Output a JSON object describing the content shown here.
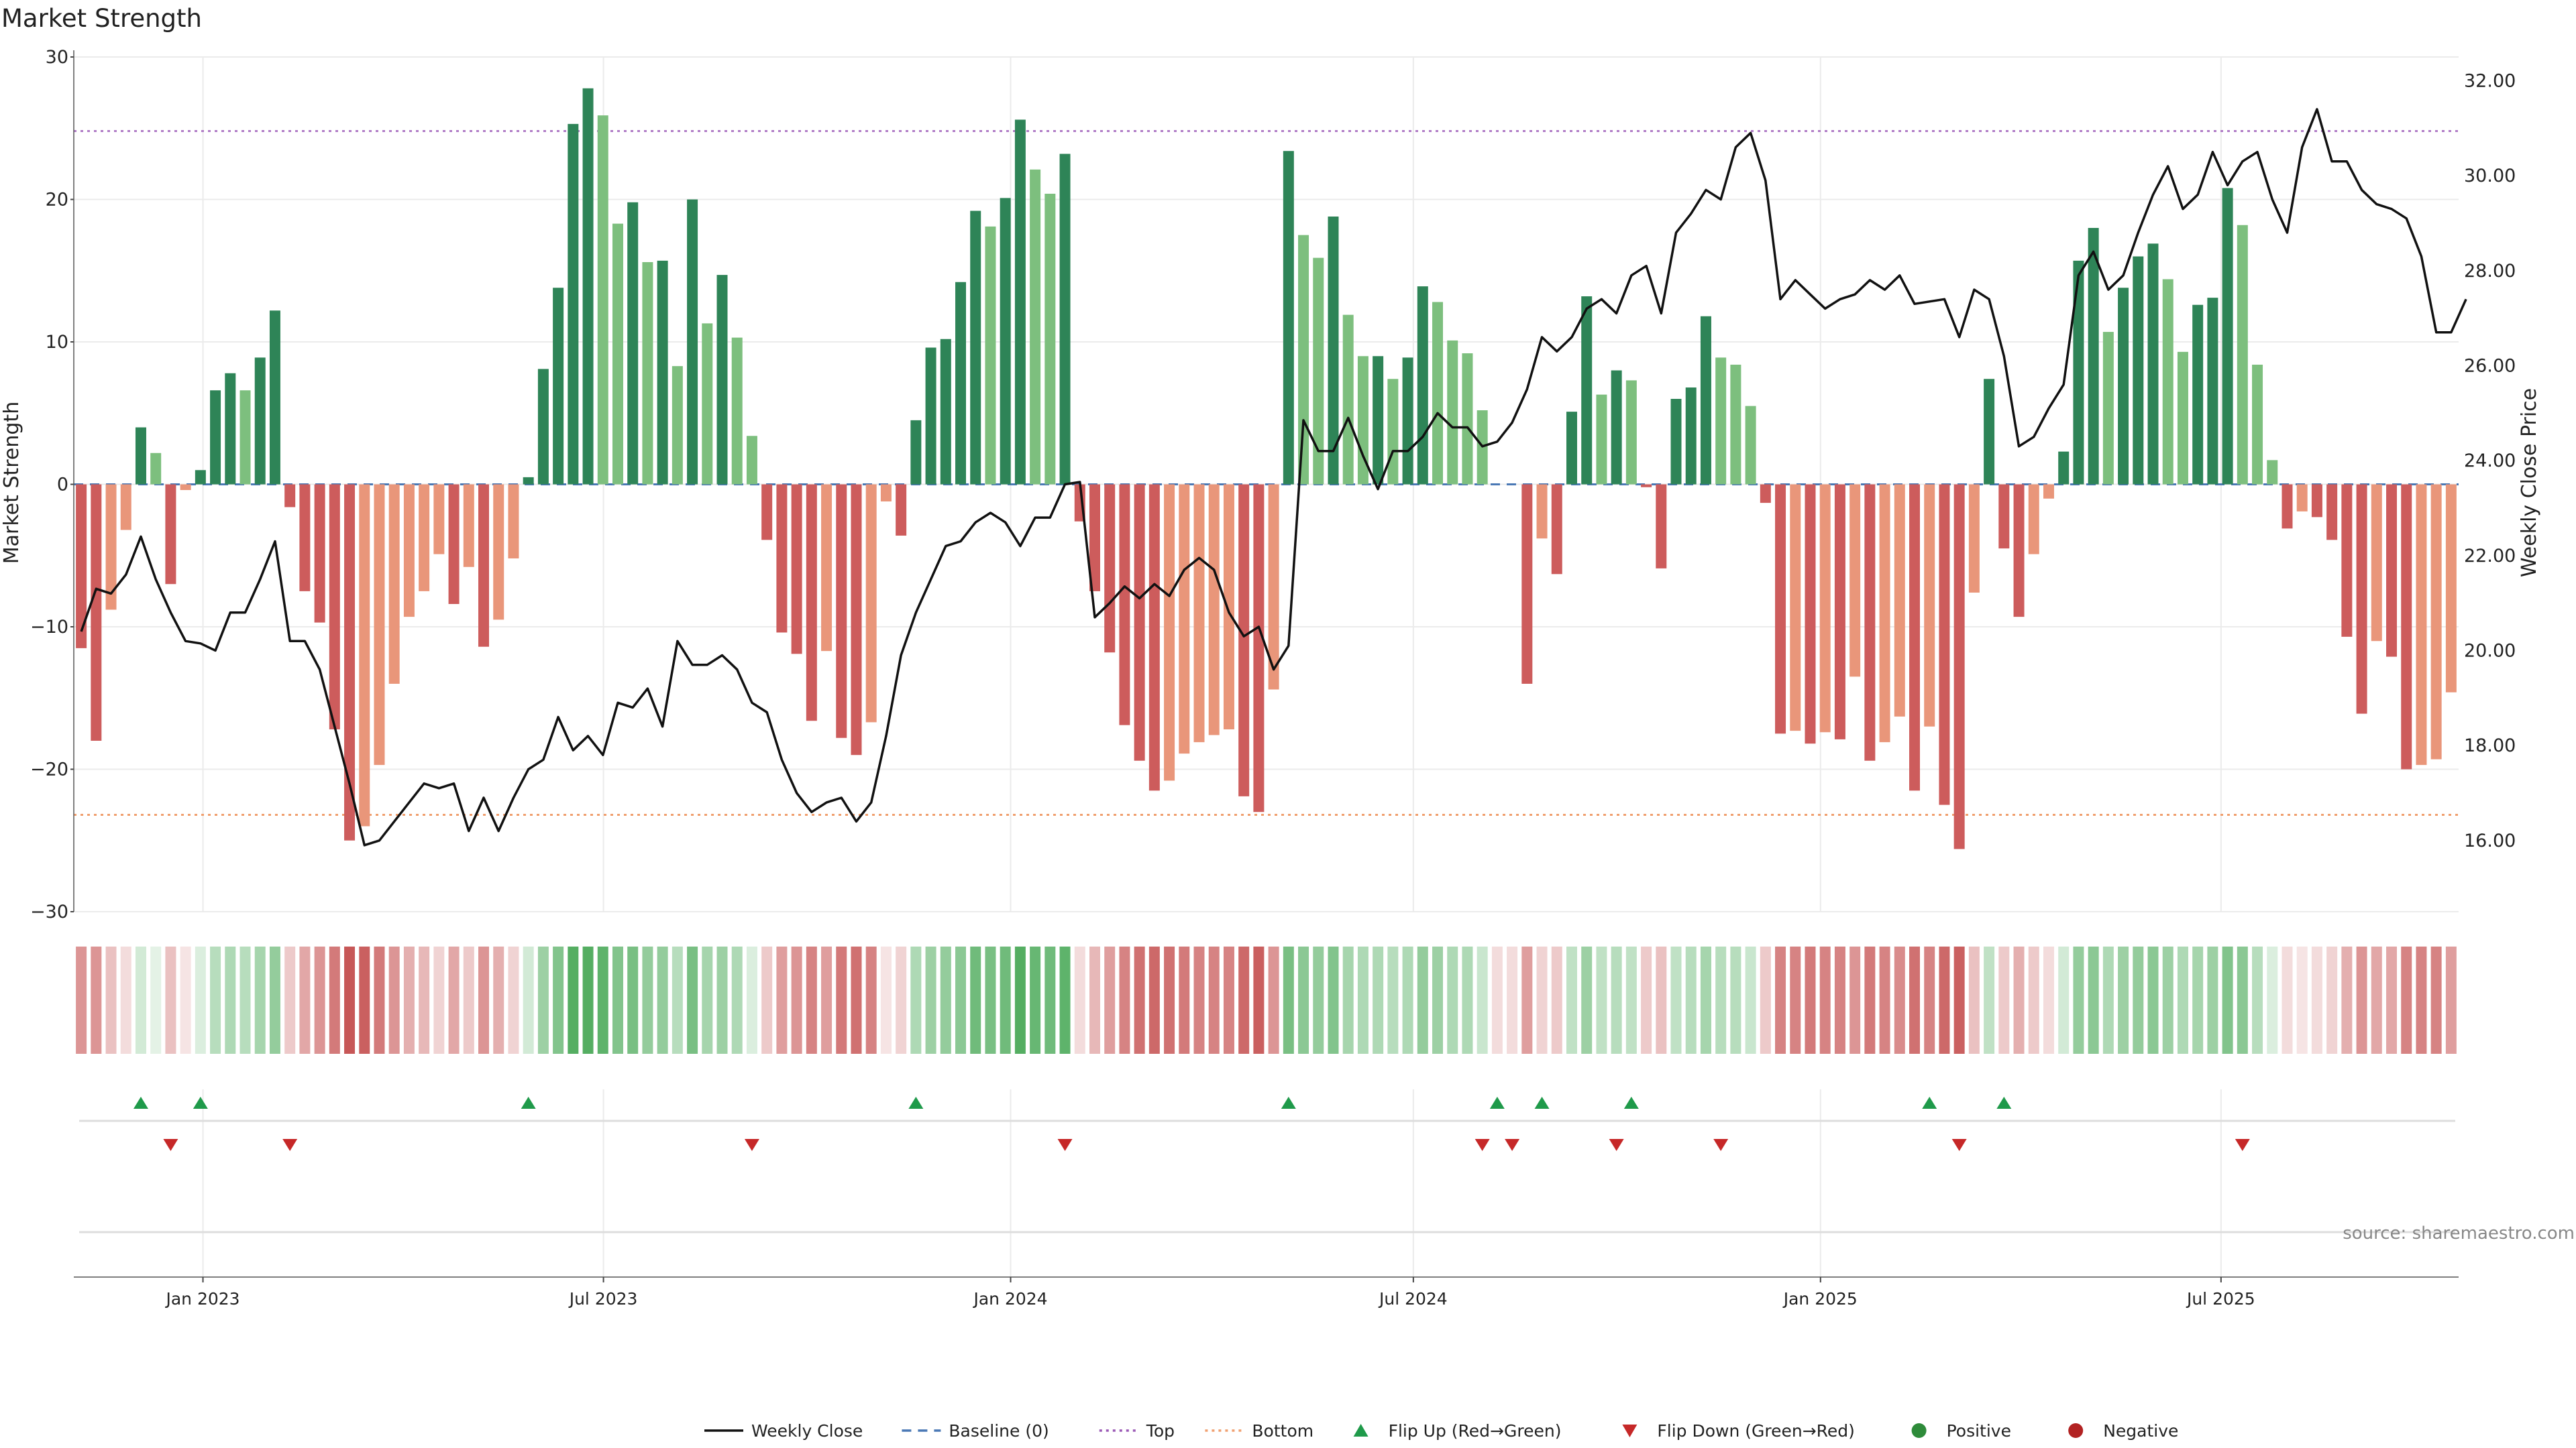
{
  "chart_data": {
    "type": "bar",
    "title": "Market Strength",
    "ylabel": "Market Strength",
    "y2label": "Weekly Close Price",
    "source": "source: sharemaestro.com",
    "ylim": [
      -30,
      30
    ],
    "y2lim": [
      14.5,
      32.5
    ],
    "yticks": [
      -30,
      -20,
      -10,
      0,
      10,
      20,
      30
    ],
    "y2ticks": [
      "16.00",
      "18.00",
      "20.00",
      "22.00",
      "24.00",
      "26.00",
      "28.00",
      "30.00",
      "32.00"
    ],
    "x_start": "2022-11-07",
    "x_end": "2025-10-13",
    "xticks": [
      {
        "date": "2023-01-01",
        "label": "Jan 2023"
      },
      {
        "date": "2023-07-01",
        "label": "Jul 2023"
      },
      {
        "date": "2024-01-01",
        "label": "Jan 2024"
      },
      {
        "date": "2024-07-01",
        "label": "Jul 2024"
      },
      {
        "date": "2025-01-01",
        "label": "Jan 2025"
      },
      {
        "date": "2025-07-01",
        "label": "Jul 2025"
      }
    ],
    "top_level": 24.8,
    "bottom_level": -23.2,
    "baseline": 0,
    "strength": [
      -11.5,
      -18,
      -8.8,
      -3.2,
      4,
      2.2,
      -7,
      -0.4,
      1,
      6.6,
      7.8,
      6.6,
      8.9,
      12.2,
      -1.6,
      -7.5,
      -9.7,
      -17.2,
      -25,
      -24,
      -19.7,
      -14,
      -9.3,
      -7.5,
      -4.9,
      -8.4,
      -5.8,
      -11.4,
      -9.5,
      -5.2,
      0.5,
      8.1,
      13.8,
      25.3,
      27.8,
      25.9,
      18.3,
      19.8,
      15.6,
      15.7,
      8.3,
      20,
      11.3,
      14.7,
      10.3,
      3.4,
      -3.9,
      -10.4,
      -11.9,
      -16.6,
      -11.7,
      -17.8,
      -19,
      -16.7,
      -1.2,
      -3.6,
      4.5,
      9.6,
      10.2,
      14.2,
      19.2,
      18.1,
      20.1,
      25.6,
      22.1,
      20.4,
      23.2,
      -2.6,
      -7.5,
      -11.8,
      -16.9,
      -19.4,
      -21.5,
      -20.8,
      -18.9,
      -18.1,
      -17.6,
      -17.2,
      -21.9,
      -23,
      -14.4,
      23.4,
      17.5,
      15.9,
      18.8,
      11.9,
      9,
      9,
      7.4,
      8.9,
      13.9,
      12.8,
      10.1,
      9.2,
      5.2,
      0,
      0,
      -14,
      -3.8,
      -6.3,
      5.1,
      13.2,
      6.3,
      8,
      7.3,
      -0.2,
      -5.9,
      6,
      6.8,
      11.8,
      8.9,
      8.4,
      5.5,
      -1.3,
      -17.5,
      -17.3,
      -18.2,
      -17.4,
      -17.9,
      -13.5,
      -19.4,
      -18.1,
      -16.3,
      -21.5,
      -17,
      -22.5,
      -25.6,
      -7.6,
      7.4,
      -4.5,
      -9.3,
      -4.9,
      -1,
      2.3,
      15.7,
      18,
      10.7,
      13.8,
      16,
      16.9,
      14.4,
      9.3,
      12.6,
      13.1,
      20.8,
      18.2,
      8.4,
      1.7,
      -3.1,
      -1.9,
      -2.3,
      -3.9,
      -10.7,
      -16.1,
      -11,
      -12.1,
      -20,
      -19.7,
      -19.3,
      -14.6
    ],
    "band_intensity": [
      0.6,
      0.6,
      0.35,
      0.2,
      0.25,
      0.15,
      0.35,
      0.15,
      0.2,
      0.4,
      0.45,
      0.4,
      0.5,
      0.6,
      0.3,
      0.5,
      0.6,
      0.75,
      0.95,
      0.9,
      0.75,
      0.6,
      0.45,
      0.4,
      0.25,
      0.5,
      0.3,
      0.6,
      0.45,
      0.25,
      0.25,
      0.55,
      0.7,
      0.95,
      0.95,
      0.9,
      0.7,
      0.75,
      0.6,
      0.6,
      0.4,
      0.75,
      0.5,
      0.55,
      0.45,
      0.2,
      0.3,
      0.55,
      0.6,
      0.7,
      0.55,
      0.75,
      0.8,
      0.7,
      0.15,
      0.25,
      0.45,
      0.55,
      0.6,
      0.65,
      0.8,
      0.75,
      0.8,
      0.95,
      0.85,
      0.8,
      0.9,
      0.2,
      0.4,
      0.55,
      0.7,
      0.8,
      0.85,
      0.8,
      0.75,
      0.7,
      0.7,
      0.7,
      0.85,
      0.9,
      0.6,
      0.75,
      0.65,
      0.6,
      0.7,
      0.5,
      0.45,
      0.45,
      0.4,
      0.45,
      0.6,
      0.55,
      0.45,
      0.45,
      0.3,
      0.2,
      0.2,
      0.55,
      0.25,
      0.3,
      0.35,
      0.55,
      0.35,
      0.4,
      0.35,
      0.3,
      0.35,
      0.35,
      0.4,
      0.5,
      0.4,
      0.4,
      0.3,
      0.3,
      0.7,
      0.7,
      0.75,
      0.7,
      0.7,
      0.6,
      0.75,
      0.7,
      0.65,
      0.8,
      0.7,
      0.85,
      0.9,
      0.35,
      0.35,
      0.3,
      0.45,
      0.3,
      0.2,
      0.25,
      0.6,
      0.65,
      0.45,
      0.55,
      0.6,
      0.65,
      0.55,
      0.45,
      0.5,
      0.55,
      0.7,
      0.65,
      0.4,
      0.2,
      0.2,
      0.15,
      0.2,
      0.25,
      0.45,
      0.6,
      0.5,
      0.5,
      0.7,
      0.7,
      0.7,
      0.55
    ],
    "weekly_close": [
      20.4,
      21.3,
      21.2,
      21.6,
      22.4,
      21.5,
      20.8,
      20.2,
      20.15,
      20.0,
      20.8,
      20.8,
      21.5,
      22.3,
      20.2,
      20.2,
      19.6,
      18.4,
      17.2,
      15.9,
      16.0,
      16.4,
      16.8,
      17.2,
      17.1,
      17.2,
      16.2,
      16.9,
      16.2,
      16.9,
      17.5,
      17.7,
      18.6,
      17.9,
      18.2,
      17.8,
      18.9,
      18.8,
      19.2,
      18.4,
      20.2,
      19.7,
      19.7,
      19.9,
      19.6,
      18.9,
      18.7,
      17.7,
      17.0,
      16.6,
      16.8,
      16.9,
      16.4,
      16.8,
      18.2,
      19.9,
      20.8,
      21.5,
      22.2,
      22.3,
      22.7,
      22.9,
      22.7,
      22.2,
      22.8,
      22.8,
      23.5,
      23.55,
      20.7,
      21.0,
      21.35,
      21.1,
      21.4,
      21.15,
      21.7,
      21.95,
      21.7,
      20.8,
      20.3,
      20.5,
      19.6,
      20.1,
      24.85,
      24.2,
      24.2,
      24.9,
      24.1,
      23.4,
      24.2,
      24.2,
      24.5,
      25.0,
      24.7,
      24.7,
      24.3,
      24.4,
      24.8,
      25.5,
      26.6,
      26.3,
      26.6,
      27.2,
      27.4,
      27.1,
      27.9,
      28.1,
      27.1,
      28.8,
      29.2,
      29.7,
      29.5,
      30.6,
      30.9,
      29.9,
      27.4,
      27.8,
      27.5,
      27.2,
      27.4,
      27.5,
      27.8,
      27.6,
      27.9,
      27.3,
      27.35,
      27.4,
      26.6,
      27.6,
      27.4,
      26.2,
      24.3,
      24.5,
      25.1,
      25.6,
      27.9,
      28.4,
      27.6,
      27.9,
      28.8,
      29.6,
      30.2,
      29.3,
      29.6,
      30.5,
      29.8,
      30.3,
      30.5,
      29.5,
      28.8,
      30.6,
      31.4,
      30.3,
      30.3,
      29.7,
      29.4,
      29.3,
      29.1,
      28.3,
      26.7,
      26.7,
      27.4
    ],
    "flip_up_weeks": [
      4,
      8,
      30,
      56,
      81,
      95,
      98,
      104,
      124,
      129
    ],
    "flip_down_weeks": [
      6,
      14,
      45,
      66,
      94,
      96,
      103,
      110,
      126,
      145
    ],
    "legend": [
      {
        "label": "Weekly Close",
        "kind": "line",
        "color": "#111111"
      },
      {
        "label": "Baseline (0)",
        "kind": "dash",
        "color": "#4a78b5"
      },
      {
        "label": "Top",
        "kind": "dot",
        "color": "#9b59b6"
      },
      {
        "label": "Bottom",
        "kind": "dot",
        "color": "#f0a070"
      },
      {
        "label": "Flip Up (Red→Green)",
        "kind": "tri-up",
        "color": "#1f9a4a"
      },
      {
        "label": "Flip Down (Green→Red)",
        "kind": "tri-down",
        "color": "#c62828"
      },
      {
        "label": "Positive",
        "kind": "circle",
        "color": "#2e8b3a"
      },
      {
        "label": "Negative",
        "kind": "circle",
        "color": "#b22222"
      }
    ],
    "grid": true,
    "legend_position": "bottom-center"
  },
  "colors": {
    "pos_dark": "#2e8457",
    "pos_light": "#7dbf7e",
    "neg_dark": "#cd5c5c",
    "neg_light": "#e9967a",
    "top_line": "#b07cc6",
    "bottom_line": "#f0a070",
    "baseline": "#4a78b5",
    "grid": "#ebebeb",
    "flip_up": "#1f9a4a",
    "flip_down": "#c62828"
  }
}
